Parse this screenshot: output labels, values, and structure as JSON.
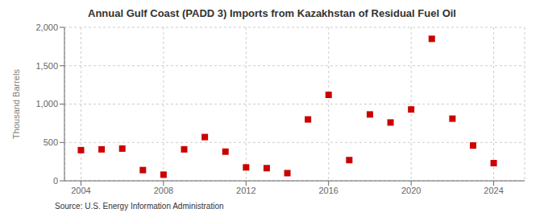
{
  "chart_data": {
    "type": "scatter",
    "title": "Annual Gulf Coast (PADD 3) Imports from Kazakhstan of Residual Fuel Oil",
    "ylabel": "Thousand Barrels",
    "source": "Source: U.S. Energy Information Administration",
    "x": [
      2004,
      2005,
      2006,
      2007,
      2008,
      2009,
      2010,
      2011,
      2012,
      2013,
      2014,
      2015,
      2016,
      2017,
      2018,
      2019,
      2020,
      2021,
      2022,
      2023,
      2024
    ],
    "values": [
      400,
      410,
      420,
      140,
      80,
      410,
      570,
      380,
      175,
      165,
      100,
      800,
      1120,
      270,
      865,
      760,
      930,
      1850,
      810,
      460,
      230
    ],
    "color": "#cc0000",
    "marker": "square",
    "xlim": [
      2003.2,
      2025.5
    ],
    "xticks": [
      2004,
      2008,
      2012,
      2016,
      2020,
      2024
    ],
    "ylim": [
      0,
      2000
    ],
    "yticks": [
      0,
      500,
      {
        "value": 1000,
        "label": "1,000"
      },
      {
        "value": 1500,
        "label": "1,500"
      },
      {
        "value": 2000,
        "label": "2,000"
      }
    ],
    "grid": true
  }
}
